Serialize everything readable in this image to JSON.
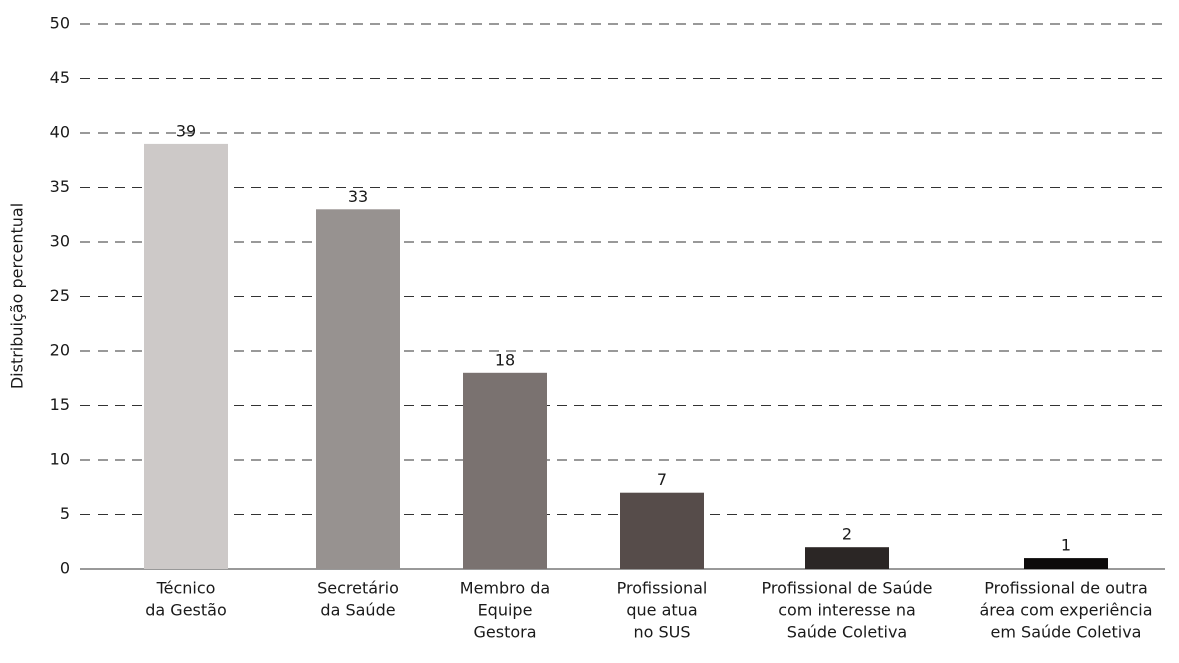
{
  "chart_data": {
    "type": "bar",
    "y_label": "Distribuição percentual",
    "categories": [
      [
        "Técnico",
        "da Gestão"
      ],
      [
        "Secretário",
        "da Saúde"
      ],
      [
        "Membro da",
        "Equipe",
        "Gestora"
      ],
      [
        "Profissional",
        "que atua",
        "no SUS"
      ],
      [
        "Profissional de Saúde",
        "com interesse na",
        "Saúde Coletiva"
      ],
      [
        "Profissional de outra",
        "área com experiência",
        "em Saúde Coletiva"
      ]
    ],
    "values": [
      39,
      33,
      18,
      7,
      2,
      1
    ],
    "colors": [
      "#cdc9c8",
      "#979290",
      "#7a7270",
      "#564c4a",
      "#2b2625",
      "#0c0a0a"
    ],
    "ylim": [
      0,
      50
    ],
    "yticks": [
      0,
      5,
      10,
      15,
      20,
      25,
      30,
      35,
      40,
      45,
      50
    ],
    "grid": true
  }
}
